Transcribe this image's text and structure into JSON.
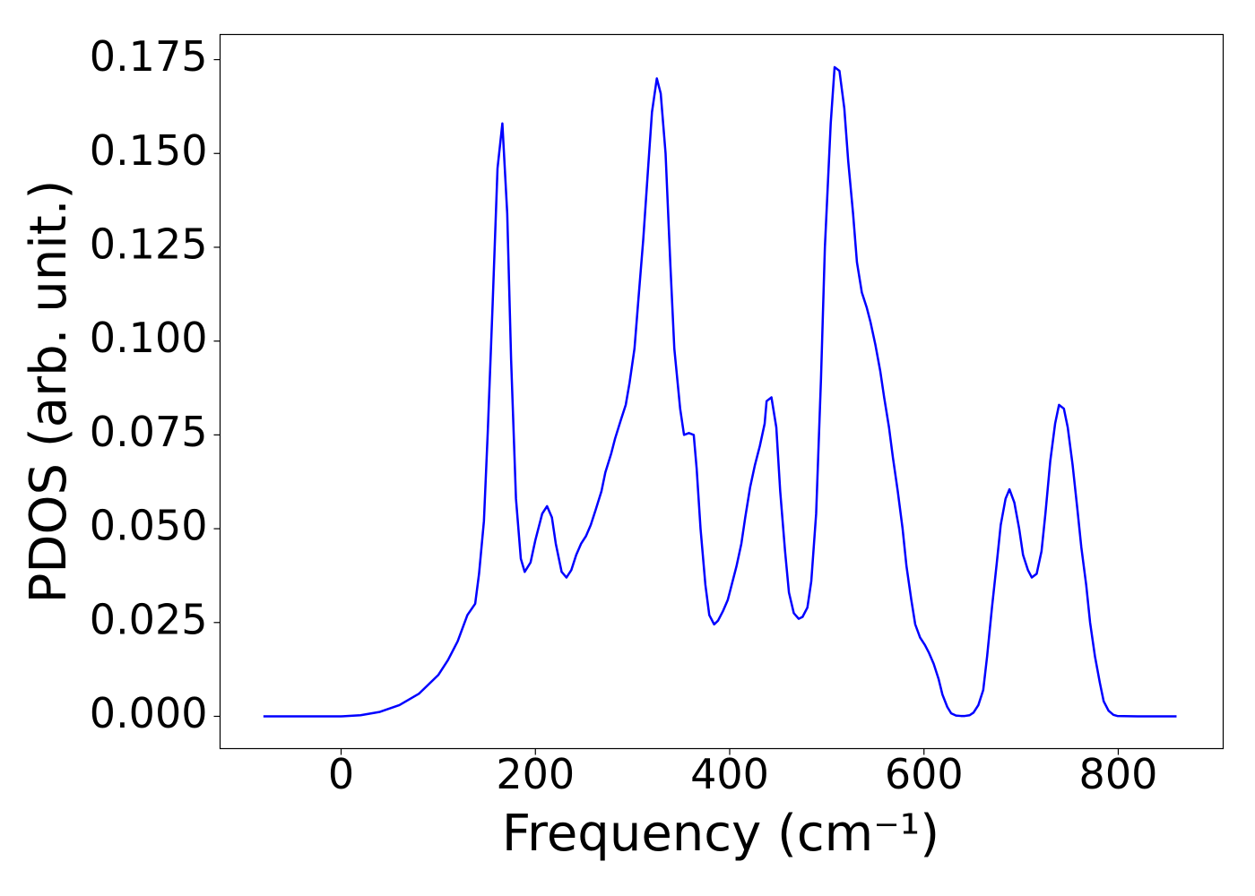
{
  "chart_data": {
    "type": "line",
    "xlabel": "Frequency (cm⁻¹)",
    "ylabel": "PDOS (arb. unit.)",
    "x": [
      -80,
      0,
      20,
      40,
      60,
      80,
      100,
      110,
      120,
      130,
      138,
      142,
      147,
      151,
      156,
      161,
      166,
      171,
      175,
      180,
      185,
      189,
      195,
      200,
      207,
      212,
      217,
      221,
      227,
      232,
      237,
      242,
      247,
      252,
      257,
      262,
      268,
      272,
      278,
      282,
      288,
      293,
      297,
      302,
      306,
      311,
      316,
      320,
      325,
      329,
      334,
      339,
      343,
      349,
      353,
      358,
      363,
      366,
      370,
      375,
      379,
      384,
      388,
      393,
      398,
      402,
      407,
      412,
      416,
      421,
      426,
      431,
      436,
      438,
      443,
      448,
      452,
      457,
      461,
      466,
      471,
      475,
      480,
      484,
      489,
      494,
      498,
      504,
      508,
      513,
      518,
      522,
      527,
      531,
      536,
      541,
      545,
      550,
      555,
      559,
      564,
      568,
      573,
      578,
      582,
      587,
      591,
      596,
      601,
      605,
      610,
      615,
      619,
      624,
      628,
      633,
      638,
      642,
      647,
      651,
      656,
      661,
      665,
      670,
      675,
      679,
      684,
      688,
      693,
      698,
      702,
      707,
      711,
      716,
      721,
      725,
      730,
      735,
      739,
      744,
      748,
      753,
      758,
      762,
      767,
      771,
      776,
      781,
      785,
      790,
      795,
      799,
      820,
      860
    ],
    "series": [
      {
        "name": "PDOS",
        "color": "#0000ff",
        "values": [
          0,
          0,
          0.0003,
          0.0012,
          0.003,
          0.006,
          0.011,
          0.015,
          0.02,
          0.027,
          0.03,
          0.038,
          0.052,
          0.076,
          0.11,
          0.146,
          0.158,
          0.134,
          0.095,
          0.058,
          0.042,
          0.0385,
          0.041,
          0.047,
          0.054,
          0.056,
          0.053,
          0.046,
          0.0385,
          0.037,
          0.039,
          0.043,
          0.046,
          0.048,
          0.051,
          0.055,
          0.06,
          0.065,
          0.07,
          0.074,
          0.079,
          0.083,
          0.089,
          0.098,
          0.111,
          0.127,
          0.146,
          0.161,
          0.17,
          0.166,
          0.15,
          0.12,
          0.098,
          0.082,
          0.075,
          0.0755,
          0.075,
          0.066,
          0.05,
          0.035,
          0.027,
          0.0245,
          0.0255,
          0.028,
          0.031,
          0.035,
          0.04,
          0.046,
          0.053,
          0.061,
          0.067,
          0.072,
          0.078,
          0.084,
          0.085,
          0.077,
          0.06,
          0.044,
          0.033,
          0.0275,
          0.026,
          0.0265,
          0.029,
          0.036,
          0.054,
          0.09,
          0.125,
          0.158,
          0.173,
          0.172,
          0.162,
          0.148,
          0.134,
          0.121,
          0.113,
          0.109,
          0.105,
          0.099,
          0.092,
          0.085,
          0.077,
          0.069,
          0.06,
          0.05,
          0.04,
          0.031,
          0.0245,
          0.021,
          0.019,
          0.017,
          0.014,
          0.01,
          0.0058,
          0.0025,
          0.0008,
          0.0002,
          0.0001,
          0.0001,
          0.0003,
          0.001,
          0.003,
          0.007,
          0.016,
          0.029,
          0.041,
          0.051,
          0.058,
          0.0605,
          0.057,
          0.05,
          0.043,
          0.039,
          0.037,
          0.038,
          0.044,
          0.054,
          0.068,
          0.078,
          0.083,
          0.082,
          0.077,
          0.067,
          0.055,
          0.045,
          0.035,
          0.025,
          0.016,
          0.009,
          0.004,
          0.0015,
          0.0004,
          0.0001,
          0,
          0
        ]
      }
    ],
    "xlim": [
      -124.6,
      908
    ],
    "ylim": [
      -0.0086,
      0.1817
    ],
    "xticks": [
      0,
      200,
      400,
      600,
      800
    ],
    "yticks": [
      {
        "value": 0,
        "label": "0.000"
      },
      {
        "value": 0.025,
        "label": "0.025"
      },
      {
        "value": 0.05,
        "label": "0.050"
      },
      {
        "value": 0.075,
        "label": "0.075"
      },
      {
        "value": 0.1,
        "label": "0.100"
      },
      {
        "value": 0.125,
        "label": "0.125"
      },
      {
        "value": 0.15,
        "label": "0.150"
      },
      {
        "value": 0.175,
        "label": "0.175"
      }
    ],
    "grid": false
  }
}
